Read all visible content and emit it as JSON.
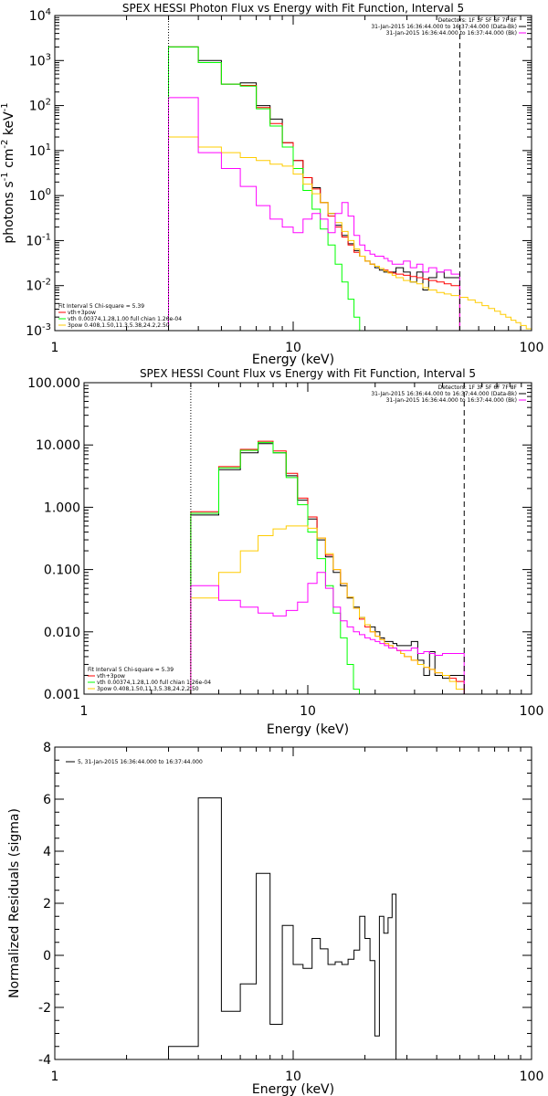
{
  "chart_data": [
    {
      "type": "line",
      "title": "SPEX HESSI Photon Flux vs Energy with Fit Function, Interval 5",
      "xlabel": "Energy (keV)",
      "ylabel_parts": [
        "photons s",
        "-1",
        " cm",
        "-2",
        " keV",
        "-1"
      ],
      "xscale": "log",
      "yscale": "log",
      "xlim": [
        1,
        100
      ],
      "ylim": [
        0.001,
        10000
      ],
      "x_ticks": [
        {
          "v": 1,
          "l": "1"
        },
        {
          "v": 10,
          "l": "10"
        },
        {
          "v": 100,
          "l": "100"
        }
      ],
      "y_ticks": [
        {
          "v": 0.001,
          "b": "10",
          "e": "-3"
        },
        {
          "v": 0.01,
          "b": "10",
          "e": "-2"
        },
        {
          "v": 0.1,
          "b": "10",
          "e": "-1"
        },
        {
          "v": 1,
          "b": "10",
          "e": "0"
        },
        {
          "v": 10,
          "b": "10",
          "e": "1"
        },
        {
          "v": 100,
          "b": "10",
          "e": "2"
        },
        {
          "v": 1000,
          "b": "10",
          "e": "3"
        },
        {
          "v": 10000,
          "b": "10",
          "e": "4"
        }
      ],
      "legend_top_right": [
        {
          "text": "Detectors: 1F 3F 5F 6F 7F 8F",
          "color": null
        },
        {
          "text": "31-Jan-2015 16:36:44.000 to 16:37:44.000 (Data-Bk)",
          "color": "#000000"
        },
        {
          "text": "31-Jan-2015 16:36:44.000 to 16:37:44.000 (Bk)",
          "color": "#ff00ff"
        }
      ],
      "legend_bottom_left": [
        {
          "text": "Fit Interval 5   Chi-square = 5.39",
          "color": null
        },
        {
          "text": "vth+3pow",
          "color": "#ff0000"
        },
        {
          "text": "vth 0.00374,1.28,1.00  full chian 1.26e-04",
          "color": "#00ff00"
        },
        {
          "text": "3pow 0.408,1.50,11.3,5.38,24.2,2.50",
          "color": "#ffcc00"
        }
      ],
      "vlines": [
        {
          "x": 3,
          "style": "dotted"
        },
        {
          "x": 50,
          "style": "dashed"
        }
      ],
      "bin_edges": [
        3,
        4,
        5,
        6,
        7,
        8,
        9,
        10,
        11,
        12,
        13,
        14,
        15,
        16,
        17,
        18,
        19,
        20,
        21,
        22,
        23,
        24,
        25,
        26,
        27,
        29,
        31,
        33,
        35,
        37,
        40,
        43,
        46,
        50,
        54,
        58,
        62,
        66,
        70,
        74,
        78,
        82,
        86,
        90,
        95,
        100
      ],
      "series": [
        {
          "name": "Data-Bk",
          "color": "#000000",
          "values": [
            2000,
            1000,
            300,
            320,
            100,
            50,
            15,
            6,
            2.5,
            1.5,
            0.7,
            0.4,
            0.22,
            0.13,
            0.085,
            0.06,
            0.045,
            0.035,
            0.03,
            0.025,
            0.022,
            0.02,
            0.02,
            0.02,
            0.025,
            0.02,
            0.012,
            0.02,
            0.008,
            0.015,
            0.02,
            0.015,
            0.015
          ]
        },
        {
          "name": "vth+3pow",
          "color": "#ff0000",
          "values": [
            2000,
            900,
            300,
            280,
            90,
            40,
            15,
            6,
            2.5,
            1.4,
            0.7,
            0.35,
            0.2,
            0.12,
            0.08,
            0.055,
            0.045,
            0.035,
            0.03,
            0.027,
            0.024,
            0.022,
            0.02,
            0.019,
            0.018,
            0.017,
            0.016,
            0.015,
            0.014,
            0.013,
            0.012,
            0.011,
            0.01
          ]
        },
        {
          "name": "vth",
          "color": "#00ff00",
          "values": [
            2000,
            900,
            300,
            270,
            85,
            35,
            12,
            4,
            1.3,
            0.5,
            0.18,
            0.08,
            0.03,
            0.012,
            0.005,
            0.002,
            0.0008,
            0.0004
          ]
        },
        {
          "name": "3pow",
          "color": "#ffcc00",
          "values": [
            20,
            12,
            9,
            7,
            6,
            5,
            4.5,
            3,
            1.8,
            1.1,
            0.7,
            0.4,
            0.25,
            0.16,
            0.1,
            0.065,
            0.045,
            0.035,
            0.03,
            0.027,
            0.024,
            0.021,
            0.019,
            0.017,
            0.015,
            0.013,
            0.012,
            0.011,
            0.009,
            0.008,
            0.007,
            0.0065,
            0.006,
            0.0055,
            0.0048,
            0.0042,
            0.0036,
            0.0031,
            0.0027,
            0.0023,
            0.002,
            0.0017,
            0.0015,
            0.0013,
            0.0011
          ]
        },
        {
          "name": "Bk",
          "color": "#ff00ff",
          "values": [
            150,
            9,
            4,
            1.6,
            0.6,
            0.3,
            0.2,
            0.15,
            0.3,
            0.4,
            0.3,
            0.15,
            0.4,
            0.7,
            0.35,
            0.13,
            0.08,
            0.06,
            0.05,
            0.045,
            0.045,
            0.04,
            0.035,
            0.03,
            0.03,
            0.035,
            0.025,
            0.03,
            0.02,
            0.025,
            0.02,
            0.022,
            0.018
          ]
        }
      ]
    },
    {
      "type": "line",
      "title": "SPEX HESSI Count Flux vs Energy with Fit Function, Interval 5",
      "xlabel": "Energy (keV)",
      "ylabel_parts": [],
      "xscale": "log",
      "yscale": "log",
      "xlim": [
        1,
        100
      ],
      "ylim": [
        0.001,
        100
      ],
      "x_ticks": [
        {
          "v": 1,
          "l": "1"
        },
        {
          "v": 10,
          "l": "10"
        },
        {
          "v": 100,
          "l": "100"
        }
      ],
      "y_ticks": [
        {
          "v": 0.001,
          "l": "0.001"
        },
        {
          "v": 0.01,
          "l": "0.010"
        },
        {
          "v": 0.1,
          "l": "0.100"
        },
        {
          "v": 1,
          "l": "1.000"
        },
        {
          "v": 10,
          "l": "10.000"
        },
        {
          "v": 100,
          "l": "100.000"
        }
      ],
      "legend_top_right": [
        {
          "text": "Detectors: 1F 3F 5F 6F 7F 8F",
          "color": null
        },
        {
          "text": "31-Jan-2015 16:36:44.000 to 16:37:44.000 (Data-Bk)",
          "color": "#000000"
        },
        {
          "text": "31-Jan-2015 16:36:44.000 to 16:37:44.000 (Bk)",
          "color": "#ff00ff"
        }
      ],
      "legend_bottom_left": [
        {
          "text": "Fit Interval 5   Chi-square = 5.39",
          "color": null
        },
        {
          "text": "vth+3pow",
          "color": "#ff0000"
        },
        {
          "text": "vth 0.00374,1.28,1.00  full chian 1.26e-04",
          "color": "#00ff00"
        },
        {
          "text": "3pow 0.408,1.50,11.3,5.38,24.2,2.50",
          "color": "#ffcc00"
        }
      ],
      "vlines": [
        {
          "x": 3,
          "style": "dotted"
        },
        {
          "x": 50,
          "style": "dashed"
        }
      ],
      "bin_edges": [
        3,
        4,
        5,
        6,
        7,
        8,
        9,
        10,
        11,
        12,
        13,
        14,
        15,
        16,
        17,
        18,
        19,
        20,
        21,
        22,
        23,
        24,
        25,
        26,
        27,
        29,
        31,
        33,
        35,
        37,
        40,
        43,
        46,
        50,
        54,
        58,
        62,
        66,
        70,
        74,
        78,
        82,
        86,
        90,
        95,
        100
      ],
      "series": [
        {
          "name": "Data-Bk",
          "color": "#000000",
          "values": [
            0.75,
            4,
            7.5,
            10.5,
            7.5,
            3.2,
            1.3,
            0.65,
            0.3,
            0.16,
            0.09,
            0.055,
            0.035,
            0.025,
            0.017,
            0.013,
            0.012,
            0.01,
            0.008,
            0.007,
            0.007,
            0.0065,
            0.006,
            0.006,
            0.006,
            0.007,
            0.0035,
            0.002,
            0.0048,
            0.002,
            0.0018,
            0.002,
            0.002
          ]
        },
        {
          "name": "vth+3pow",
          "color": "#ff0000",
          "values": [
            0.85,
            4.5,
            8.5,
            11.5,
            8,
            3.5,
            1.4,
            0.7,
            0.32,
            0.17,
            0.1,
            0.06,
            0.036,
            0.024,
            0.016,
            0.012,
            0.01,
            0.0085,
            0.0075,
            0.0065,
            0.006,
            0.0055,
            0.005,
            0.0045,
            0.004,
            0.0035,
            0.003,
            0.0027,
            0.0025,
            0.0022,
            0.002,
            0.0018,
            0.0016
          ]
        },
        {
          "name": "vth",
          "color": "#00ff00",
          "values": [
            0.8,
            4.3,
            8.2,
            11,
            7.5,
            3,
            1.1,
            0.4,
            0.15,
            0.055,
            0.02,
            0.008,
            0.003,
            0.0012,
            0.0005
          ]
        },
        {
          "name": "3pow",
          "color": "#ffcc00",
          "values": [
            0.035,
            0.09,
            0.2,
            0.35,
            0.45,
            0.5,
            0.5,
            0.46,
            0.32,
            0.18,
            0.1,
            0.06,
            0.036,
            0.024,
            0.017,
            0.013,
            0.01,
            0.0085,
            0.0075,
            0.0065,
            0.006,
            0.0055,
            0.005,
            0.0045,
            0.004,
            0.0035,
            0.003,
            0.0027,
            0.0025,
            0.0022,
            0.002,
            0.0016,
            0.0012,
            0.0009
          ]
        },
        {
          "name": "Bk",
          "color": "#ff00ff",
          "values": [
            0.055,
            0.032,
            0.025,
            0.02,
            0.018,
            0.022,
            0.03,
            0.06,
            0.09,
            0.05,
            0.025,
            0.015,
            0.012,
            0.01,
            0.009,
            0.008,
            0.0075,
            0.007,
            0.0065,
            0.006,
            0.0055,
            0.0055,
            0.005,
            0.005,
            0.005,
            0.0055,
            0.0045,
            0.0048,
            0.0045,
            0.0042,
            0.0045,
            0.0045,
            0.0045
          ]
        }
      ]
    },
    {
      "type": "line",
      "title": "",
      "xlabel": "Energy (keV)",
      "ylabel": "Normalized Residuals (sigma)",
      "xscale": "log",
      "yscale": "linear",
      "xlim": [
        1,
        100
      ],
      "ylim": [
        -4,
        8
      ],
      "x_ticks": [
        {
          "v": 1,
          "l": "1"
        },
        {
          "v": 10,
          "l": "10"
        },
        {
          "v": 100,
          "l": "100"
        }
      ],
      "y_ticks": [
        {
          "v": -4,
          "l": "-4"
        },
        {
          "v": -2,
          "l": "-2"
        },
        {
          "v": 0,
          "l": "0"
        },
        {
          "v": 2,
          "l": "2"
        },
        {
          "v": 4,
          "l": "4"
        },
        {
          "v": 6,
          "l": "6"
        },
        {
          "v": 8,
          "l": "8"
        }
      ],
      "legend_top_left": [
        {
          "text": "5, 31-Jan-2015 16:36:44.000 to 16:37:44.000",
          "color": "#000000"
        }
      ],
      "bin_edges": [
        3,
        4,
        5,
        6,
        7,
        8,
        9,
        10,
        11,
        12,
        13,
        14,
        15,
        16,
        17,
        18,
        19,
        20,
        21,
        22,
        23,
        24,
        25,
        26,
        27,
        29,
        31,
        33,
        35,
        37,
        40,
        43,
        46,
        50
      ],
      "series": [
        {
          "name": "5",
          "color": "#000000",
          "values": [
            -3.5,
            6.05,
            -2.15,
            -1.1,
            3.15,
            -2.65,
            1.15,
            -0.35,
            -0.5,
            0.65,
            0.25,
            -0.35,
            -0.25,
            -0.35,
            -0.15,
            0.2,
            1.5,
            0.65,
            -0.2,
            -3.1,
            1.5,
            0.85,
            1.45,
            2.35
          ]
        }
      ]
    }
  ]
}
